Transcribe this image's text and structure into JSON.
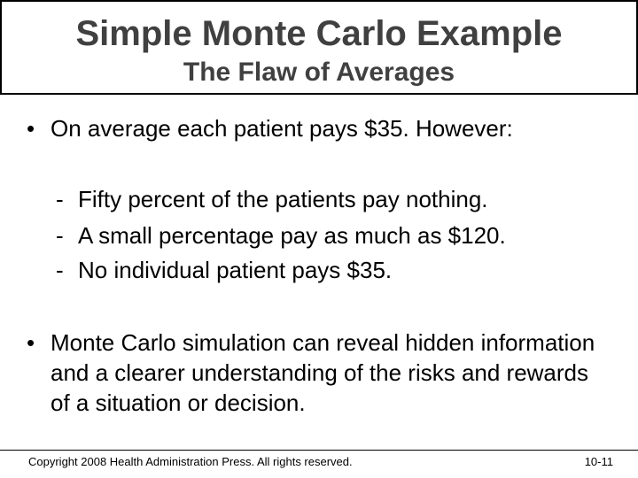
{
  "slide": {
    "title": "Simple Monte Carlo Example",
    "subtitle": "The Flaw of Averages"
  },
  "bullets": [
    {
      "marker": "•",
      "text": "On average each patient pays $35. However:",
      "subitems": [
        {
          "marker": "-",
          "text": "Fifty percent of the patients pay nothing."
        },
        {
          "marker": "-",
          "text": "A small percentage pay as much as $120."
        },
        {
          "marker": "-",
          "text": "No individual patient pays $35."
        }
      ]
    },
    {
      "marker": "•",
      "text": "Monte Carlo simulation can reveal hidden information and a clearer understanding of the risks and rewards of a situation or decision."
    }
  ],
  "footer": {
    "copyright": "Copyright 2008 Health Administration Press. All rights reserved.",
    "page_number": "10-11"
  }
}
